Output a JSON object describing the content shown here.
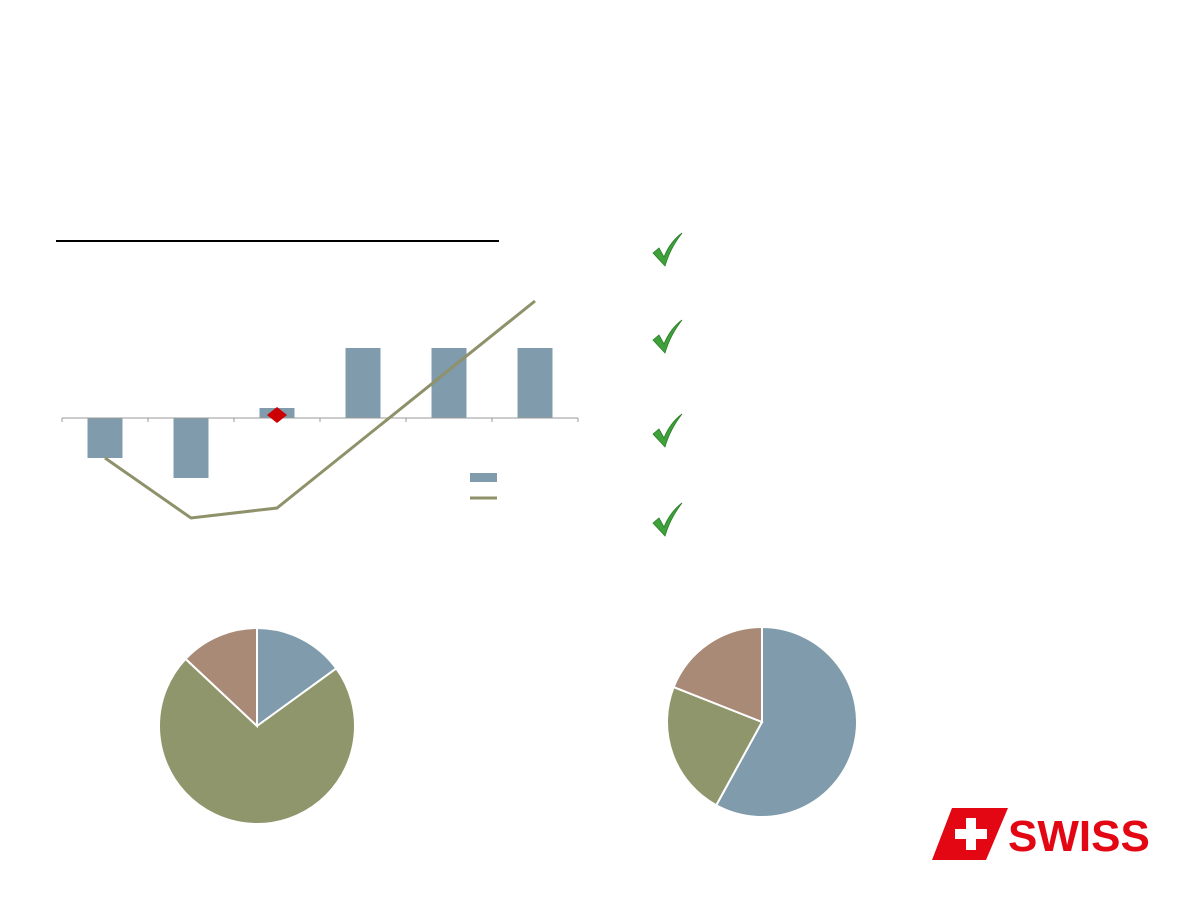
{
  "colors": {
    "bar": "#7f9bac",
    "line": "#8f916a",
    "marker": "#cc0000",
    "pie_blue": "#7f9bac",
    "pie_green": "#8f966b",
    "pie_brown": "#a98a76",
    "check": "#3ea13a",
    "brand_red": "#e30613"
  },
  "chart_data": [
    {
      "type": "bar",
      "categories": [
        "",
        "",
        "",
        "",
        "",
        ""
      ],
      "series": [
        {
          "type": "bar",
          "values": [
            -4,
            -6,
            1,
            7,
            7,
            7
          ]
        },
        {
          "type": "line",
          "values": [
            -4,
            -10,
            -9,
            null,
            null,
            11.7
          ]
        }
      ],
      "marker": {
        "category_index": 2,
        "value": 0.3,
        "shape": "diamond"
      },
      "grid": false,
      "legend": "right-middle"
    },
    {
      "type": "pie",
      "values": [
        15,
        72,
        13
      ],
      "labels": [
        "",
        "",
        ""
      ],
      "start": "top",
      "direction": "clockwise"
    },
    {
      "type": "pie",
      "values": [
        58,
        23,
        19
      ],
      "labels": [
        "",
        "",
        ""
      ],
      "start": "top",
      "direction": "clockwise"
    }
  ],
  "checklist": {
    "count": 4,
    "icon": "checkmark-icon"
  },
  "logo": {
    "text": "SWISS",
    "icon": "swiss-cross-flag-icon"
  }
}
